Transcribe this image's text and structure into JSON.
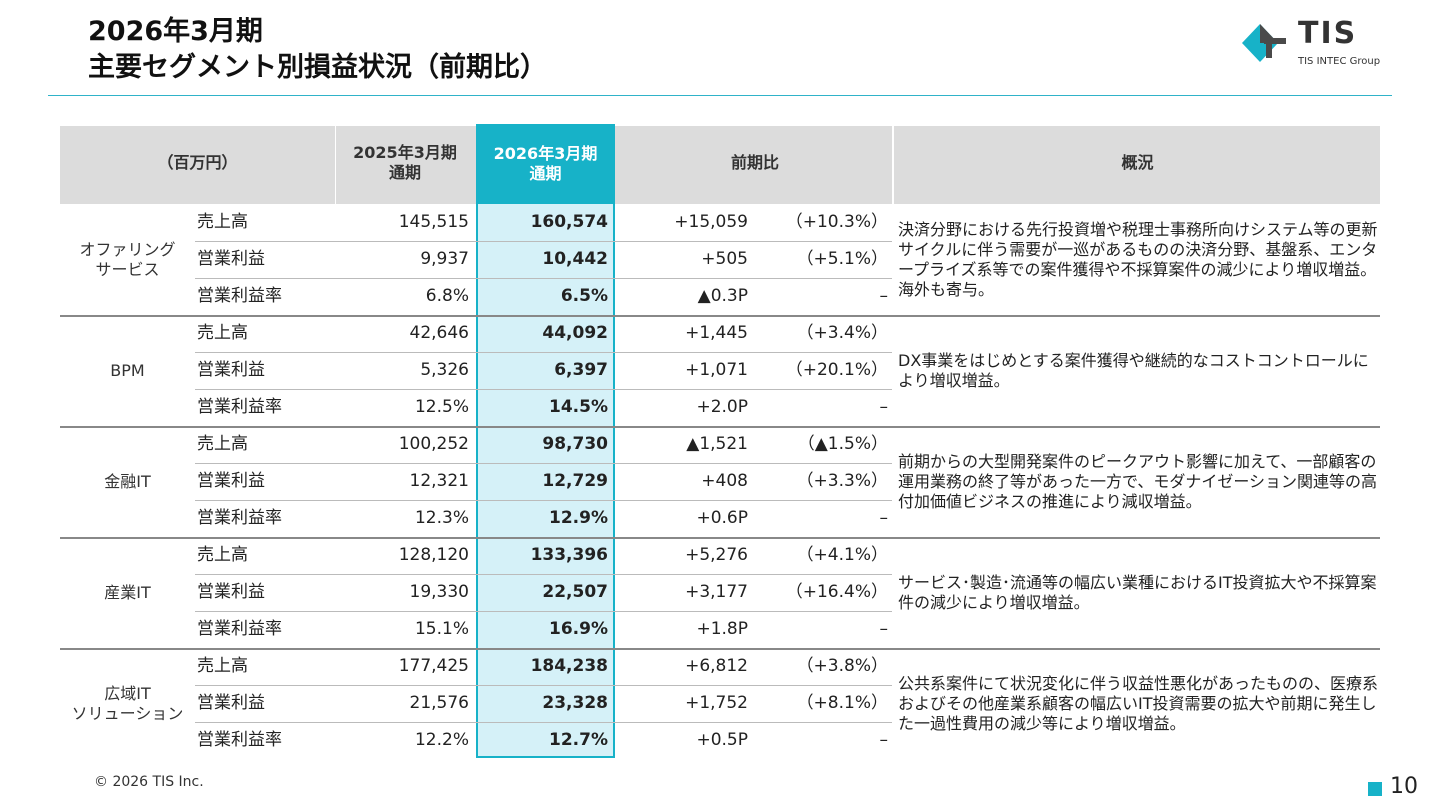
{
  "title": {
    "line1": "2026年3月期",
    "line2": "主要セグメント別損益状況（前期比）"
  },
  "logo": {
    "name": "TIS",
    "sub": "TIS INTEC Group"
  },
  "header": {
    "unit": "（百万円）",
    "prev_year": "2025年3月期",
    "prev_period": "通期",
    "curr_year": "2026年3月期",
    "curr_period": "通期",
    "change": "前期比",
    "summary": "概況"
  },
  "segments": [
    {
      "name": "オファリング\nサービス",
      "rows": [
        {
          "metric": "売上高",
          "prev": "145,515",
          "curr": "160,574",
          "diff": "+15,059",
          "pct": "（+10.3%）"
        },
        {
          "metric": "営業利益",
          "prev": "9,937",
          "curr": "10,442",
          "diff": "+505",
          "pct": "（+5.1%）"
        },
        {
          "metric": "営業利益率",
          "prev": "6.8%",
          "curr": "6.5%",
          "diff": "▲0.3P",
          "pct": "–"
        }
      ],
      "summary": "決済分野における先行投資増や税理士事務所向けシステム等の更新サイクルに伴う需要が一巡があるものの決済分野、基盤系、エンタープライズ系等での案件獲得や不採算案件の減少により増収増益。海外も寄与。"
    },
    {
      "name": "BPM",
      "rows": [
        {
          "metric": "売上高",
          "prev": "42,646",
          "curr": "44,092",
          "diff": "+1,445",
          "pct": "（+3.4%）"
        },
        {
          "metric": "営業利益",
          "prev": "5,326",
          "curr": "6,397",
          "diff": "+1,071",
          "pct": "（+20.1%）"
        },
        {
          "metric": "営業利益率",
          "prev": "12.5%",
          "curr": "14.5%",
          "diff": "+2.0P",
          "pct": "–"
        }
      ],
      "summary": "DX事業をはじめとする案件獲得や継続的なコストコントロールにより増収増益。"
    },
    {
      "name": "金融IT",
      "rows": [
        {
          "metric": "売上高",
          "prev": "100,252",
          "curr": "98,730",
          "diff": "▲1,521",
          "pct": "（▲1.5%）"
        },
        {
          "metric": "営業利益",
          "prev": "12,321",
          "curr": "12,729",
          "diff": "+408",
          "pct": "（+3.3%）"
        },
        {
          "metric": "営業利益率",
          "prev": "12.3%",
          "curr": "12.9%",
          "diff": "+0.6P",
          "pct": "–"
        }
      ],
      "summary": "前期からの大型開発案件のピークアウト影響に加えて、一部顧客の運用業務の終了等があった一方で、モダナイゼーション関連等の高付加価値ビジネスの推進により減収増益。"
    },
    {
      "name": "産業IT",
      "rows": [
        {
          "metric": "売上高",
          "prev": "128,120",
          "curr": "133,396",
          "diff": "+5,276",
          "pct": "（+4.1%）"
        },
        {
          "metric": "営業利益",
          "prev": "19,330",
          "curr": "22,507",
          "diff": "+3,177",
          "pct": "（+16.4%）"
        },
        {
          "metric": "営業利益率",
          "prev": "15.1%",
          "curr": "16.9%",
          "diff": "+1.8P",
          "pct": "–"
        }
      ],
      "summary": "サービス･製造･流通等の幅広い業種におけるIT投資拡大や不採算案件の減少により増収増益。"
    },
    {
      "name": "広域IT\nソリューション",
      "rows": [
        {
          "metric": "売上高",
          "prev": "177,425",
          "curr": "184,238",
          "diff": "+6,812",
          "pct": "（+3.8%）"
        },
        {
          "metric": "営業利益",
          "prev": "21,576",
          "curr": "23,328",
          "diff": "+1,752",
          "pct": "（+8.1%）"
        },
        {
          "metric": "営業利益率",
          "prev": "12.2%",
          "curr": "12.7%",
          "diff": "+0.5P",
          "pct": "–"
        }
      ],
      "summary": "公共系案件にて状況変化に伴う収益性悪化があったものの、医療系およびその他産業系顧客の幅広いIT投資需要の拡大や前期に発生した一過性費用の減少等により増収増益。"
    }
  ],
  "footer": {
    "copyright": "© 2026 TIS Inc.",
    "page": "10"
  },
  "colors": {
    "accent": "#17b2c8",
    "highlight_bg": "#d5f1f8",
    "header_bg": "#dcdcdc"
  }
}
